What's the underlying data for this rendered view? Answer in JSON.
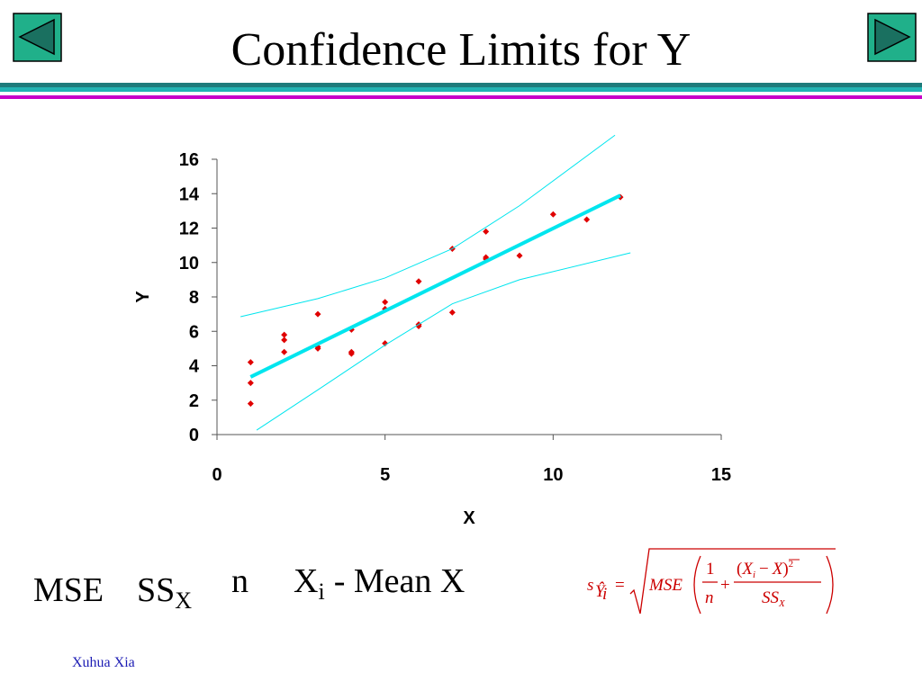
{
  "header": {
    "title": "Confidence Limits for Y"
  },
  "chart_data": {
    "type": "scatter",
    "xlabel": "X",
    "ylabel": "Y",
    "xlim": [
      0,
      15
    ],
    "ylim": [
      0,
      16
    ],
    "xticks": [
      0,
      5,
      10,
      15
    ],
    "yticks": [
      0,
      2,
      4,
      6,
      8,
      10,
      12,
      14,
      16
    ],
    "series": [
      {
        "kind": "points",
        "color": "#e00000",
        "x": [
          1,
          1,
          1,
          2,
          2,
          2,
          3,
          3,
          3,
          4,
          4,
          4,
          5,
          5,
          5,
          6,
          6,
          6,
          7,
          7,
          8,
          8,
          8,
          9,
          10,
          11,
          12
        ],
        "values": [
          4.2,
          3.0,
          1.8,
          5.8,
          5.5,
          4.8,
          7.0,
          5.1,
          5.0,
          6.1,
          4.8,
          4.7,
          7.7,
          7.3,
          5.3,
          8.9,
          6.4,
          6.3,
          10.8,
          7.1,
          11.8,
          10.3,
          10.2,
          10.4,
          12.8,
          12.5,
          13.8
        ]
      },
      {
        "kind": "line",
        "color": "#00e5ee",
        "width": 4,
        "x": [
          1,
          12
        ],
        "values": [
          3.35,
          13.9
        ]
      },
      {
        "kind": "line",
        "color": "#00e5ee",
        "width": 1,
        "x": [
          0.7,
          3,
          5,
          7,
          9,
          11.84
        ],
        "values": [
          6.85,
          7.9,
          9.1,
          10.8,
          13.3,
          17.4
        ]
      },
      {
        "kind": "line",
        "color": "#00e5ee",
        "width": 1,
        "x": [
          1.18,
          3,
          5,
          7,
          9,
          12.3
        ],
        "values": [
          0.26,
          2.6,
          5.2,
          7.6,
          9.0,
          10.56
        ]
      }
    ]
  },
  "terms": {
    "mse": "MSE",
    "ss": "SS",
    "ss_sub": "X",
    "n": "n",
    "xi": "X",
    "xi_sub": "i",
    "mean": "- Mean X"
  },
  "formula": {
    "s": "s",
    "s_sub": "Ŷ",
    "s_subsub": "i",
    "eq": "=",
    "mse": "MSE",
    "one": "1",
    "n": "n",
    "plus": "+",
    "open": "(",
    "x": "X",
    "x_sub": "i",
    "minus": "−",
    "xbar": "X",
    "close": ")",
    "sq": "2",
    "ss": "SS",
    "ss_sub": "X"
  },
  "footer": {
    "author": "Xuhua Xia"
  }
}
